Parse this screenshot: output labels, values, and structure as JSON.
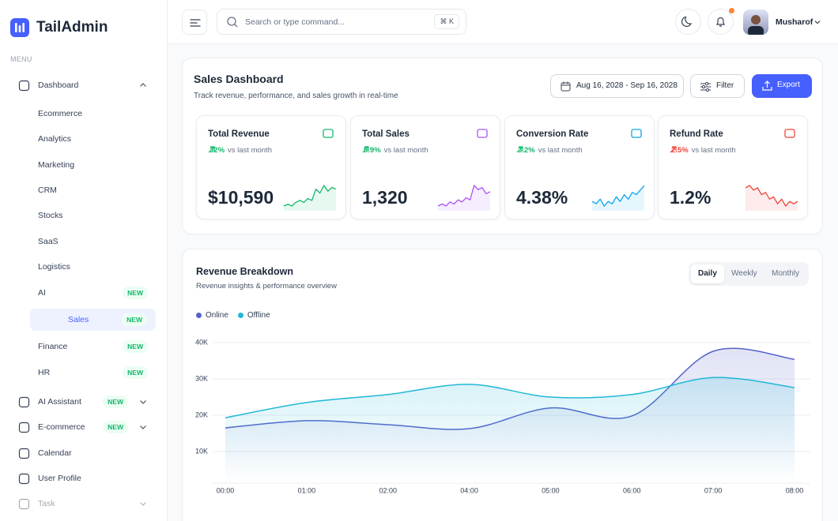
{
  "sidebar": {
    "brand": "TailAdmin",
    "menu_label": "MENU",
    "menu": [
      {
        "label": "Dashboard",
        "children": [
          {
            "label": "Ecommerce"
          },
          {
            "label": "Analytics"
          },
          {
            "label": "Marketing"
          },
          {
            "label": "CRM"
          },
          {
            "label": "Stocks"
          },
          {
            "label": "SaaS"
          },
          {
            "label": "Logistics"
          },
          {
            "label": "AI",
            "badge": "NEW"
          },
          {
            "label": "Sales",
            "badge": "NEW",
            "active": true
          },
          {
            "label": "Finance",
            "badge": "NEW"
          },
          {
            "label": "HR",
            "badge": "NEW"
          }
        ]
      },
      {
        "label": "AI Assistant",
        "badge": "NEW",
        "expandable": true
      },
      {
        "label": "E-commerce",
        "badge": "NEW",
        "expandable": true
      },
      {
        "label": "Calendar"
      },
      {
        "label": "User Profile"
      },
      {
        "label": "Task",
        "expandable": true
      }
    ]
  },
  "header": {
    "search_placeholder": "Search or type command...",
    "shortcut": "⌘ K",
    "user": "Musharof"
  },
  "page": {
    "title": "Sales Dashboard",
    "subtitle": "Track revenue, performance, and sales growth in real-time",
    "date_range": "Aug 16, 2028 - Sep 16, 2028",
    "filter": "Filter",
    "export": "Export"
  },
  "stats": [
    {
      "label": "Total Revenue",
      "change": "32%",
      "change_text": "vs last month",
      "value": "$10,590",
      "color": "#12b76a",
      "trend": [
        3,
        4,
        3,
        5,
        6,
        5,
        7,
        6,
        12,
        10,
        14,
        11,
        13,
        12
      ]
    },
    {
      "label": "Total Sales",
      "change": "5.9%",
      "change_text": "vs last month",
      "value": "1,320",
      "color": "#a855f7",
      "trend": [
        3,
        4,
        3,
        5,
        4,
        6,
        5,
        7,
        6,
        13,
        11,
        12,
        9,
        10
      ]
    },
    {
      "label": "Conversion Rate",
      "change": "3.2%",
      "change_text": "vs last month",
      "value": "4.38%",
      "color": "#0ba5ec",
      "trend": [
        5,
        4,
        6,
        3,
        5,
        4,
        7,
        5,
        8,
        6,
        9,
        8,
        10,
        12
      ]
    },
    {
      "label": "Refund Rate",
      "change": "2.5%",
      "change_text": "vs last month",
      "value": "1.2%",
      "color": "#f04438",
      "trend": [
        12,
        13,
        11,
        12,
        9,
        10,
        7,
        8,
        5,
        7,
        4,
        6,
        5,
        6
      ]
    }
  ],
  "tabs": [
    "Daily",
    "Weekly",
    "Monthly"
  ],
  "chart_data": {
    "type": "area",
    "title": "Revenue Breakdown",
    "subtitle": "Revenue insights & performance overview",
    "categories": [
      "00:00",
      "01:00",
      "02:00",
      "04:00",
      "05:00",
      "06:00",
      "07:00",
      "08:00"
    ],
    "series": [
      {
        "name": "Online",
        "color": "#5563c9",
        "values": [
          16500,
          18500,
          17400,
          16300,
          22000,
          19800,
          37600,
          35400
        ]
      },
      {
        "name": "Offline",
        "color": "#22b8d6",
        "values": [
          19300,
          23500,
          25700,
          28500,
          25000,
          25700,
          30400,
          27600
        ]
      }
    ],
    "ylim": [
      0,
      40000
    ],
    "yticks": [
      {
        "value": 10000,
        "label": "10K"
      },
      {
        "value": 20000,
        "label": "20K"
      },
      {
        "value": 30000,
        "label": "30K"
      },
      {
        "value": 40000,
        "label": "40K"
      }
    ],
    "grid": true
  }
}
